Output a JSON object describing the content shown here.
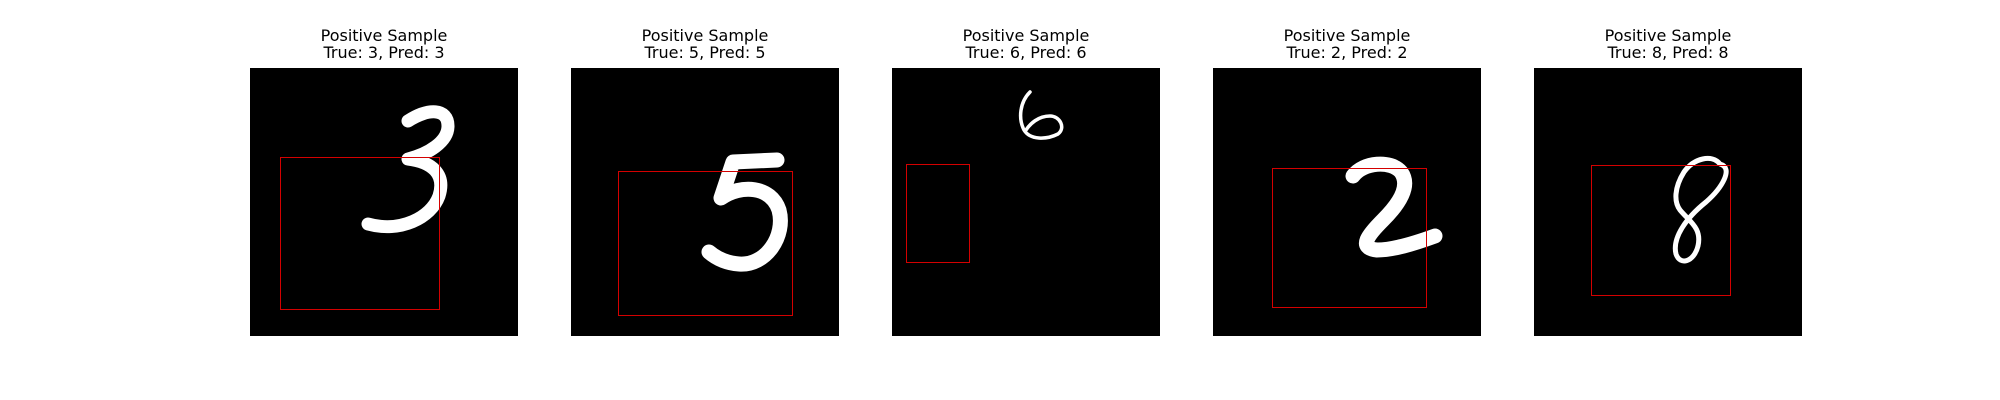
{
  "figure": {
    "panels": [
      {
        "title": "Positive Sample",
        "subtitle": "True: 3, Pred: 3",
        "digit_icon": "digit-3-stroke",
        "box_color": "#d40000"
      },
      {
        "title": "Positive Sample",
        "subtitle": "True: 5, Pred: 5",
        "digit_icon": "digit-5-stroke",
        "box_color": "#d40000"
      },
      {
        "title": "Positive Sample",
        "subtitle": "True: 6, Pred: 6",
        "digit_icon": "digit-6-stroke",
        "box_color": "#d40000"
      },
      {
        "title": "Positive Sample",
        "subtitle": "True: 2, Pred: 2",
        "digit_icon": "digit-2-stroke",
        "box_color": "#d40000"
      },
      {
        "title": "Positive Sample",
        "subtitle": "True: 8, Pred: 8",
        "digit_icon": "digit-8-stroke",
        "box_color": "#d40000"
      }
    ]
  }
}
